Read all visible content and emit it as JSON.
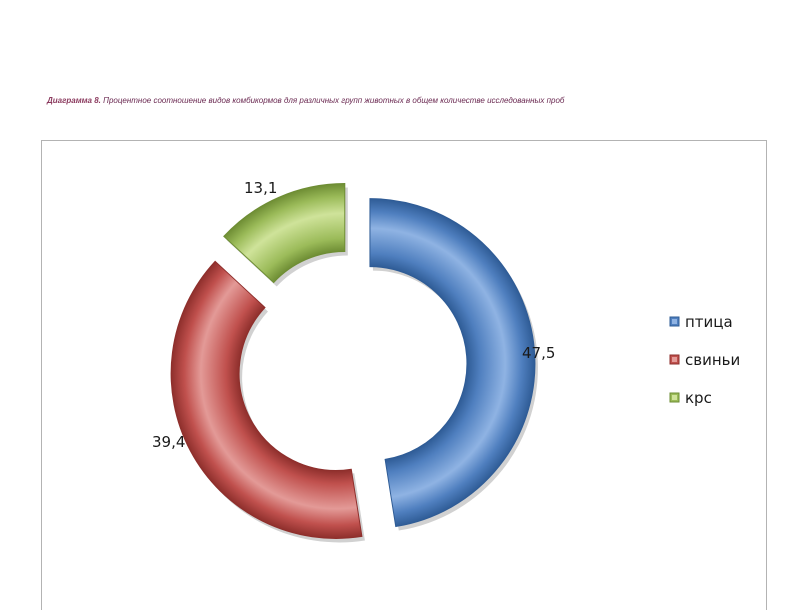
{
  "caption": {
    "lead": "Диаграмма 8.",
    "text": "Процентное соотношение видов комбикормов для различных групп животных в общем количестве исследованных проб"
  },
  "colors": {
    "series": [
      "#4f7fbf",
      "#c0504d",
      "#9bbb59"
    ],
    "series_dark": [
      "#2f5c96",
      "#8e2f2c",
      "#6e8d34"
    ],
    "series_light": [
      "#8fb3e3",
      "#e39a97",
      "#cfe39a"
    ],
    "frame": "#b3b3b3",
    "caption": "#6b2a52"
  },
  "chart_data": {
    "type": "pie",
    "variant": "exploded-doughnut",
    "categories": [
      "птица",
      "свиньи",
      "крс"
    ],
    "values": [
      47.5,
      39.4,
      13.1
    ],
    "data_labels": [
      "47,5",
      "39,4",
      "13,1"
    ],
    "legend": {
      "position": "right",
      "entries": [
        "птица",
        "свиньи",
        "крс"
      ]
    }
  }
}
